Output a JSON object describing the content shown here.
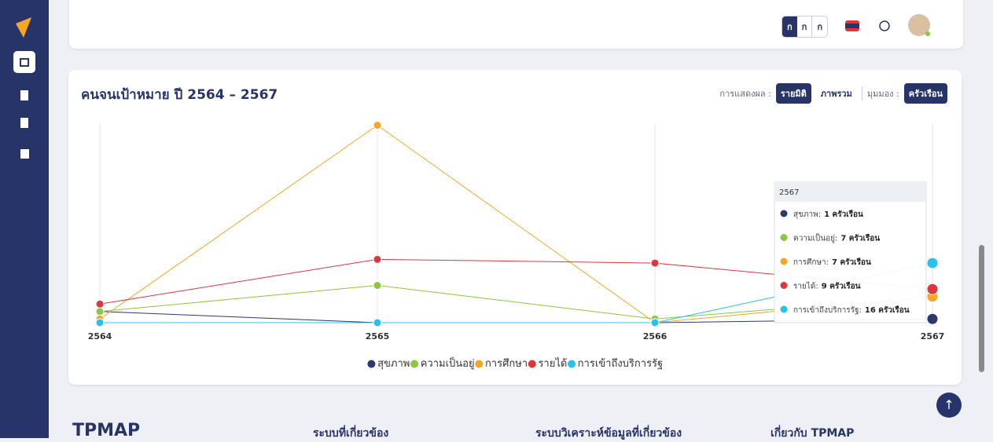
{
  "header": {
    "font_buttons": [
      "ก",
      "ก",
      "ก"
    ]
  },
  "card": {
    "title": "คนจนเป้าหมาย ปี 2564 – 2567",
    "display_label": "การแสดงผล :",
    "display_options": [
      "รายมิติ",
      "ภาพรวม"
    ],
    "view_label": "มุมมอง :",
    "view_option": "ครัวเรือน"
  },
  "chart_data": {
    "type": "line",
    "categories": [
      "2564",
      "2565",
      "2566",
      "2567"
    ],
    "ylim": [
      0,
      55
    ],
    "series": [
      {
        "name": "สุขภาพ",
        "color": "#2b3a6b",
        "values": [
          3,
          0,
          0,
          1
        ]
      },
      {
        "name": "ความเป็นอยู่",
        "color": "#8dc63f",
        "values": [
          3,
          10,
          1,
          7
        ]
      },
      {
        "name": "การศึกษา",
        "color": "#f5a623",
        "values": [
          1,
          53,
          0,
          7
        ]
      },
      {
        "name": "รายได้",
        "color": "#e0353f",
        "values": [
          5,
          17,
          16,
          9
        ]
      },
      {
        "name": "การเข้าถึงบริการรัฐ",
        "color": "#29c0ec",
        "values": [
          0,
          0,
          0,
          16
        ]
      }
    ]
  },
  "tooltip": {
    "labels": [
      "สุขภาพ:",
      "ความเป็นอยู่:",
      "การศึกษา:",
      "รายได้:",
      "การเข้าถึงบริการรัฐ:"
    ],
    "value_labels": [
      "1 ครัวเรือน",
      "7 ครัวเรือน",
      "7 ครัวเรือน",
      "9 ครัวเรือน",
      "16 ครัวเรือน"
    ]
  },
  "footer": {
    "logo": "TPMAP",
    "columns": [
      "ระบบที่เกี่ยวข้อง",
      "ระบบวิเคราะห์ข้อมูลที่เกี่ยวข้อง",
      "เกี่ยวกับ TPMAP"
    ]
  }
}
